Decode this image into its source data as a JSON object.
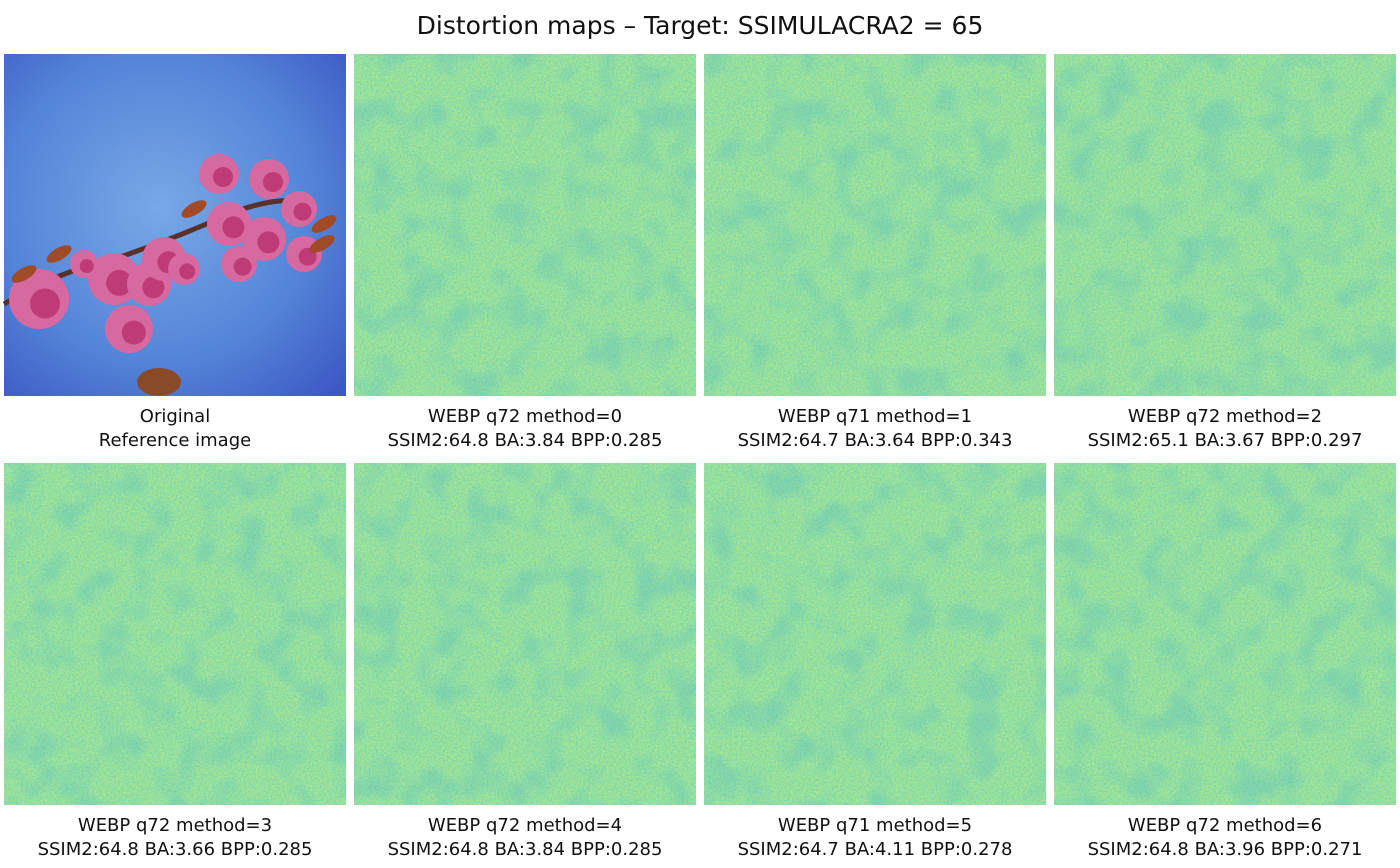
{
  "title": "Distortion maps – Target: SSIMULACRA2 = 65",
  "panels": [
    {
      "line1": "Original",
      "line2": "Reference image"
    },
    {
      "line1": "WEBP q72 method=0",
      "line2": "SSIM2:64.8 BA:3.84 BPP:0.285"
    },
    {
      "line1": "WEBP q71 method=1",
      "line2": "SSIM2:64.7 BA:3.64 BPP:0.343"
    },
    {
      "line1": "WEBP q72 method=2",
      "line2": "SSIM2:65.1 BA:3.67 BPP:0.297"
    },
    {
      "line1": "WEBP q72 method=3",
      "line2": "SSIM2:64.8 BA:3.66 BPP:0.285"
    },
    {
      "line1": "WEBP q72 method=4",
      "line2": "SSIM2:64.8 BA:3.84 BPP:0.285"
    },
    {
      "line1": "WEBP q71 method=5",
      "line2": "SSIM2:64.7 BA:4.11 BPP:0.278"
    },
    {
      "line1": "WEBP q72 method=6",
      "line2": "SSIM2:64.8 BA:3.96 BPP:0.271"
    }
  ]
}
